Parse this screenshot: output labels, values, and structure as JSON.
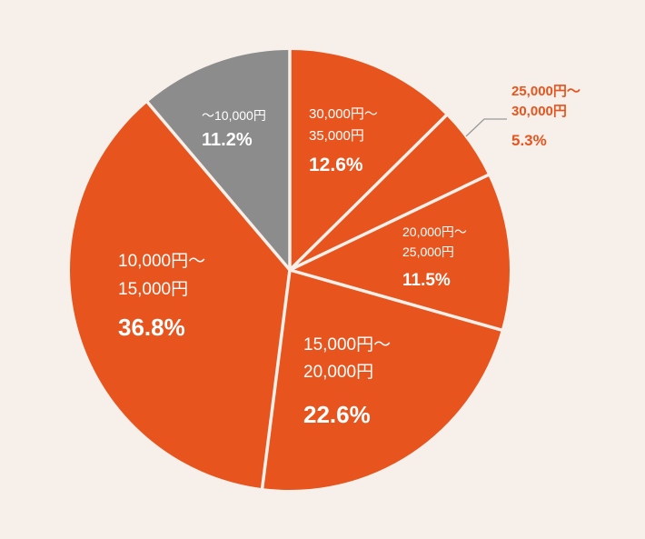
{
  "colors": {
    "background": "#f7f0ea",
    "slice_main": "#e8541e",
    "slice_gray": "#8c8c8c",
    "separator": "#f7f0ea",
    "outside_label": "#e8541e",
    "leader_line": "#999999"
  },
  "chart_data": {
    "type": "pie",
    "start": "12 o'clock",
    "direction": "clockwise",
    "legend": "none",
    "slices": [
      {
        "line1": "30,000円〜",
        "line2": "35,000円",
        "value": 12.6,
        "pct_label": "12.6%",
        "color": "#e8541e",
        "label_position": "inside"
      },
      {
        "line1": "25,000円〜",
        "line2": "30,000円",
        "value": 5.3,
        "pct_label": "5.3%",
        "color": "#e8541e",
        "label_position": "outside"
      },
      {
        "line1": "20,000円〜",
        "line2": "25,000円",
        "value": 11.5,
        "pct_label": "11.5%",
        "color": "#e8541e",
        "label_position": "inside"
      },
      {
        "line1": "15,000円〜",
        "line2": "20,000円",
        "value": 22.6,
        "pct_label": "22.6%",
        "color": "#e8541e",
        "label_position": "inside"
      },
      {
        "line1": "10,000円〜",
        "line2": "15,000円",
        "value": 36.8,
        "pct_label": "36.8%",
        "color": "#e8541e",
        "label_position": "inside"
      },
      {
        "line1": "〜10,000円",
        "line2": "",
        "value": 11.2,
        "pct_label": "11.2%",
        "color": "#8c8c8c",
        "label_position": "inside"
      }
    ]
  }
}
